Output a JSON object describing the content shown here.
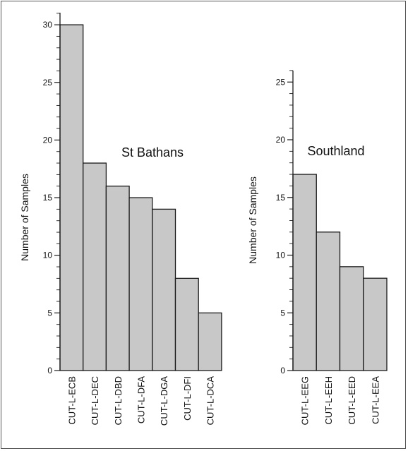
{
  "chart_data": [
    {
      "type": "bar",
      "title": "St Bathans",
      "xlabel": "",
      "ylabel": "Number of Samples",
      "ylim": [
        0,
        32
      ],
      "yticks": [
        0,
        5,
        10,
        15,
        20,
        25,
        30
      ],
      "minor_tick_step": 1,
      "grid": false,
      "bar_color": "#c8c8c8",
      "edge_color": "#1a1a1a",
      "categories": [
        "CUT-L-ECB",
        "CUT-L-DEC",
        "CUT-L-DBD",
        "CUT-L-DFA",
        "CUT-L-DGA",
        "CUT-L-DFI",
        "CUT-L-DCA"
      ],
      "values": [
        30,
        18,
        16,
        15,
        14,
        8,
        5
      ]
    },
    {
      "type": "bar",
      "title": "Southland",
      "xlabel": "",
      "ylabel": "Number of Samples",
      "ylim": [
        0,
        26
      ],
      "yticks": [
        0,
        5,
        10,
        15,
        20,
        25
      ],
      "minor_tick_step": 1,
      "grid": false,
      "bar_color": "#c8c8c8",
      "edge_color": "#1a1a1a",
      "categories": [
        "CUT-L-EEG",
        "CUT-L-EEH",
        "CUT-L-EED",
        "CUT-L-EEA"
      ],
      "values": [
        17,
        12,
        9,
        8
      ]
    }
  ]
}
